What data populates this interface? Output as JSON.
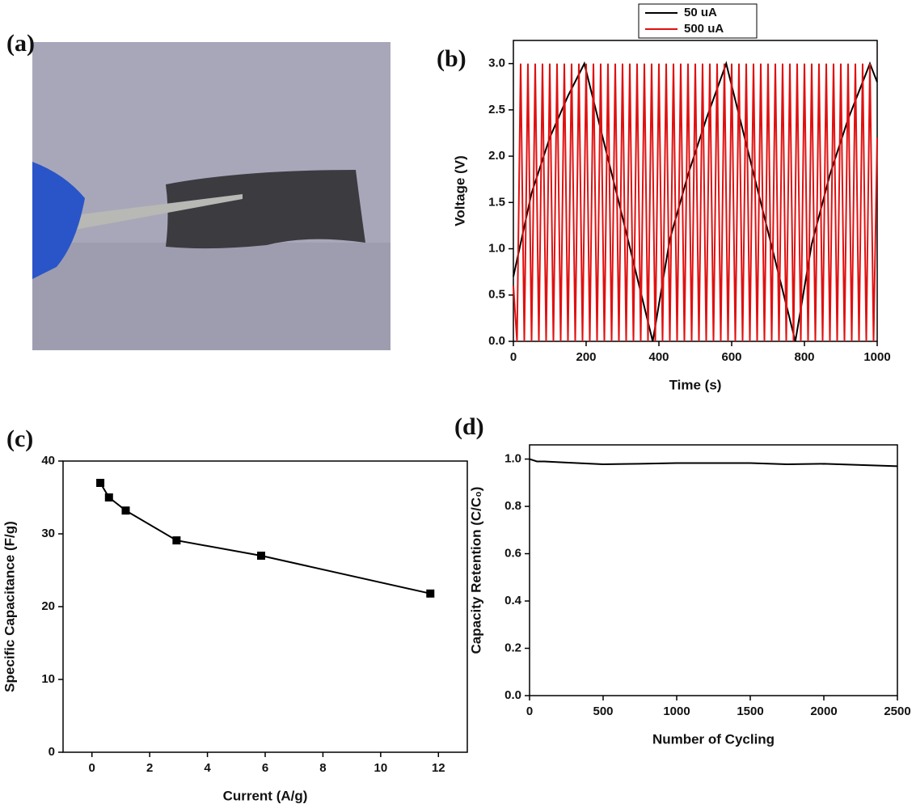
{
  "photo": {
    "label": "(a)"
  },
  "chart_data": [
    {
      "type": "line",
      "label": "(b)",
      "xlabel": "Time (s)",
      "ylabel": "Voltage (V)",
      "xlim": [
        0,
        1000
      ],
      "ylim": [
        0,
        3.25
      ],
      "xticks": [
        0,
        200,
        400,
        600,
        800,
        1000
      ],
      "yticks": [
        {
          "value": 0,
          "label": "0.0"
        },
        0.5,
        {
          "value": 1,
          "label": "1.0"
        },
        1.5,
        {
          "value": 2,
          "label": "2.0"
        },
        2.5,
        {
          "value": 3,
          "label": "3.0"
        }
      ],
      "legend": "top-center",
      "markers": false,
      "series": [
        {
          "name": "50 uA",
          "color": "#000000",
          "x": [
            0,
            50,
            100,
            150,
            195,
            290,
            383,
            430,
            480,
            530,
            585,
            680,
            775,
            820,
            870,
            920,
            980,
            1000
          ],
          "values": [
            0.7,
            1.6,
            2.2,
            2.65,
            3.0,
            1.5,
            0,
            1.1,
            1.8,
            2.4,
            3.0,
            1.5,
            0,
            1.05,
            1.8,
            2.4,
            3.0,
            2.8
          ]
        },
        {
          "name": "500 uA",
          "color": "#e01010",
          "x": [
            0,
            10,
            20,
            30,
            40,
            50,
            60,
            70,
            80,
            90,
            100,
            110,
            120,
            130,
            140,
            150,
            160,
            170,
            180,
            190,
            200,
            210,
            220,
            230,
            240,
            250,
            260,
            270,
            280,
            290,
            300,
            310,
            320,
            330,
            340,
            350,
            360,
            370,
            380,
            390,
            400,
            410,
            420,
            430,
            440,
            450,
            460,
            470,
            480,
            490,
            500,
            510,
            520,
            530,
            540,
            550,
            560,
            570,
            580,
            590,
            600,
            610,
            620,
            630,
            640,
            650,
            660,
            670,
            680,
            690,
            700,
            710,
            720,
            730,
            740,
            750,
            760,
            770,
            780,
            790,
            800,
            810,
            820,
            830,
            840,
            850,
            860,
            870,
            880,
            890,
            900,
            910,
            920,
            930,
            940,
            950,
            960,
            970,
            980,
            990,
            1000
          ],
          "values": [
            0.6,
            0,
            3,
            0,
            3,
            0,
            3,
            0,
            3,
            0,
            3,
            0,
            3,
            0,
            3,
            0,
            3,
            0,
            3,
            0,
            3,
            0,
            3,
            0,
            3,
            0,
            3,
            0,
            3,
            0,
            3,
            0,
            3,
            0,
            3,
            0,
            3,
            0,
            3,
            0,
            3,
            0,
            3,
            0,
            3,
            0,
            3,
            0,
            3,
            0,
            3,
            0,
            3,
            0,
            3,
            0,
            3,
            0,
            3,
            0,
            3,
            0,
            3,
            0,
            3,
            0,
            3,
            0,
            3,
            0,
            3,
            0,
            3,
            0,
            3,
            0,
            3,
            0,
            3,
            0,
            3,
            0,
            3,
            0,
            3,
            0,
            3,
            0,
            3,
            0,
            3,
            0,
            3,
            0,
            3,
            0,
            3,
            0,
            3,
            0,
            2.2
          ]
        }
      ]
    },
    {
      "type": "line",
      "label": "(c)",
      "xlabel": "Current (A/g)",
      "ylabel": "Specific Capacitance (F/g)",
      "xlim": [
        -1,
        13
      ],
      "ylim": [
        0,
        40
      ],
      "xticks": [
        0,
        2,
        4,
        6,
        8,
        10,
        12
      ],
      "yticks": [
        0,
        10,
        20,
        30,
        40
      ],
      "markers": true,
      "series": [
        {
          "color": "#000000",
          "x": [
            0.29,
            0.59,
            1.17,
            2.93,
            5.86,
            11.72
          ],
          "values": [
            37,
            35,
            33.2,
            29.1,
            27,
            21.8
          ]
        }
      ]
    },
    {
      "type": "line",
      "label": "(d)",
      "xlabel": "Number of Cycling",
      "ylabel": "Capacity Retention (C/C₀)",
      "xlim": [
        0,
        2500
      ],
      "ylim": [
        0,
        1.06
      ],
      "xticks": [
        0,
        500,
        1000,
        1500,
        2000,
        2500
      ],
      "yticks": [
        {
          "value": 0,
          "label": "0.0"
        },
        0.2,
        0.4,
        0.6,
        0.8,
        {
          "value": 1,
          "label": "1.0"
        }
      ],
      "markers": false,
      "series": [
        {
          "color": "#000000",
          "x": [
            0,
            50,
            100,
            250,
            500,
            750,
            1000,
            1500,
            1750,
            2000,
            2250,
            2500
          ],
          "values": [
            1.0,
            0.99,
            0.99,
            0.985,
            0.978,
            0.98,
            0.983,
            0.983,
            0.978,
            0.98,
            0.975,
            0.97
          ]
        }
      ]
    }
  ]
}
